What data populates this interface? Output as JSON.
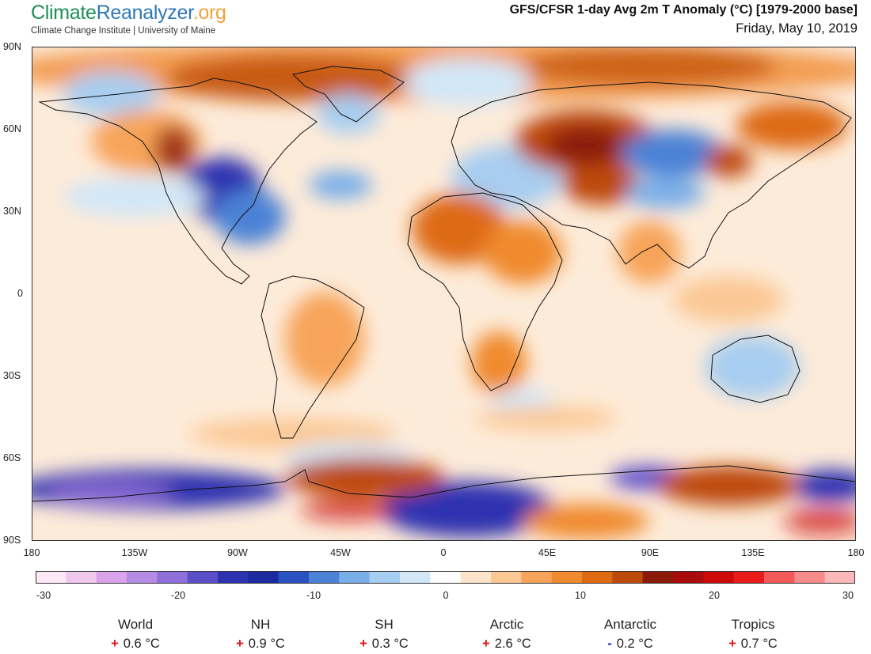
{
  "header": {
    "brand_part1": "Climate",
    "brand_part2": "Reanalyzer",
    "brand_part3": ".org",
    "subtitle": "Climate Change Institute | University of Maine",
    "title": "GFS/CFSR 1-day Avg 2m T Anomaly (°C) [1979-2000 base]",
    "date": "Friday, May 10, 2019"
  },
  "map": {
    "lat_labels": [
      "90N",
      "60N",
      "30N",
      "0",
      "30S",
      "60S",
      "90S"
    ],
    "lon_labels": [
      "180",
      "135W",
      "90W",
      "45W",
      "0",
      "45E",
      "90E",
      "135E",
      "180"
    ],
    "colors": {
      "warm": "#f08a2e",
      "hot": "#8c1a08",
      "cold": "#2d33b0",
      "cool": "#a7cdf0",
      "neutral": "#fdebd9"
    }
  },
  "colorbar": {
    "labels": [
      "-30",
      "-20",
      "-10",
      "0",
      "10",
      "20",
      "30"
    ],
    "colors": [
      "#fde9f6",
      "#f0c8ee",
      "#d9a2ea",
      "#b68be3",
      "#8f6fd9",
      "#5b4ec9",
      "#2d33b0",
      "#1d2a9e",
      "#2a52c0",
      "#4b82d6",
      "#79aee8",
      "#a7cdf0",
      "#d2e7f8",
      "#ffffff",
      "#fde4ca",
      "#fbc894",
      "#f7a45a",
      "#f08a2e",
      "#de6a12",
      "#bd4a08",
      "#8c1a08",
      "#a80c0c",
      "#cc0a0a",
      "#e81a1a",
      "#f25a5a",
      "#f78a8a",
      "#fbb8b8"
    ]
  },
  "stats": [
    {
      "name": "World",
      "sign": "+",
      "value": "0.6 °C"
    },
    {
      "name": "NH",
      "sign": "+",
      "value": "0.9 °C"
    },
    {
      "name": "SH",
      "sign": "+",
      "value": "0.3 °C"
    },
    {
      "name": "Arctic",
      "sign": "+",
      "value": "2.6 °C"
    },
    {
      "name": "Antarctic",
      "sign": "-",
      "value": "0.2 °C"
    },
    {
      "name": "Tropics",
      "sign": "+",
      "value": "0.7 °C"
    }
  ]
}
